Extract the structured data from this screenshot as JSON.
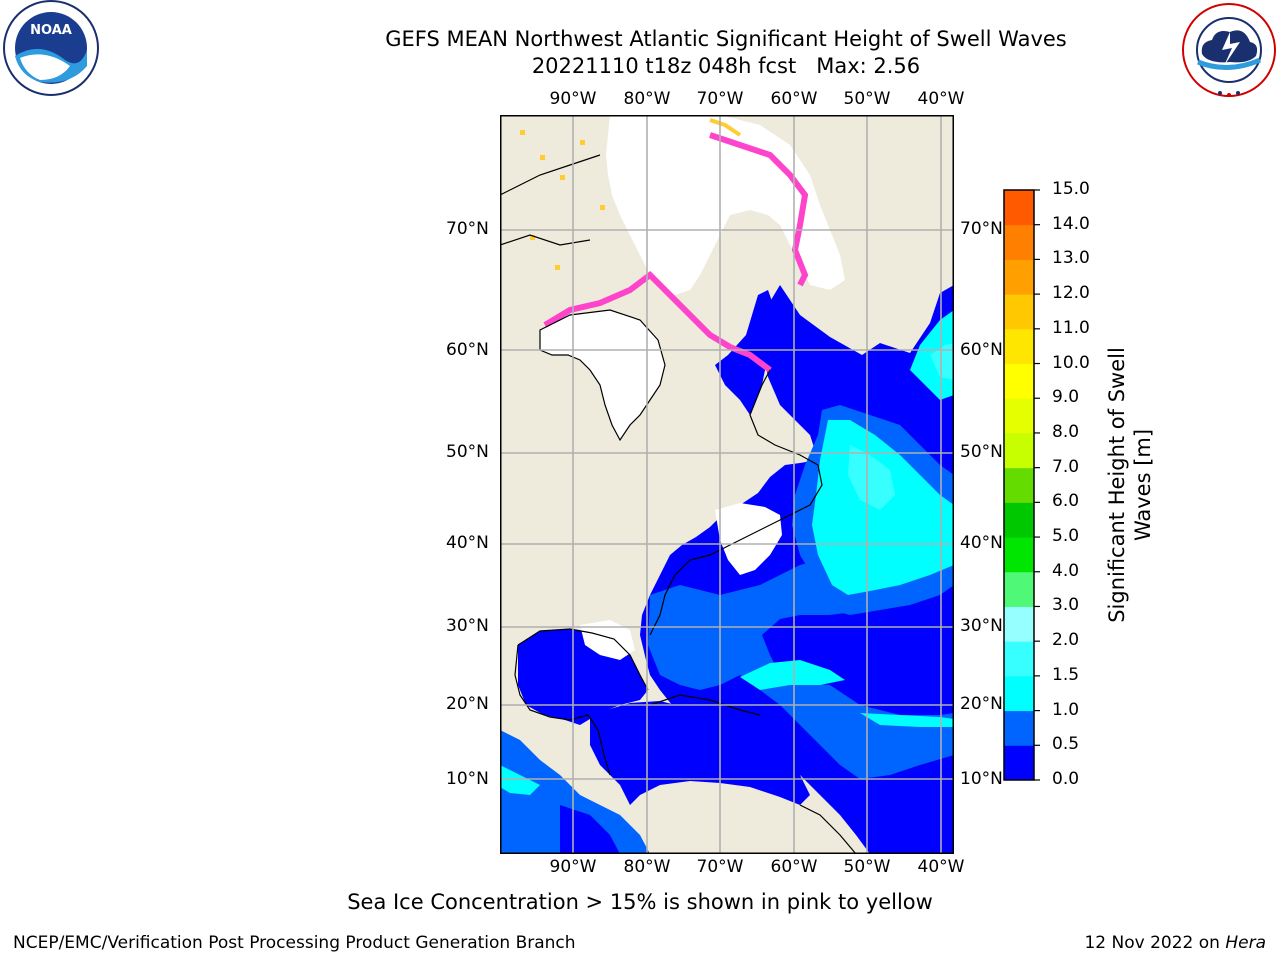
{
  "title_line1": "GEFS MEAN Northwest Atlantic Significant Height of Swell Waves",
  "title_line2": "20221110 t18z 048h fcst   Max: 2.56",
  "lon_labels": [
    "90°W",
    "80°W",
    "70°W",
    "60°W",
    "50°W",
    "40°W"
  ],
  "lat_labels": [
    "70°N",
    "60°N",
    "50°N",
    "40°N",
    "30°N",
    "20°N",
    "10°N"
  ],
  "colorbar": {
    "label_line1": "Significant Height of Swell",
    "label_line2": "Waves [m]",
    "ticks": [
      "15.0",
      "14.0",
      "13.0",
      "12.0",
      "11.0",
      "10.0",
      "9.0",
      "8.0",
      "7.0",
      "6.0",
      "5.0",
      "4.0",
      "3.0",
      "2.0",
      "1.5",
      "1.0",
      "0.5",
      "0.0"
    ],
    "colors_bottom_to_top": [
      "#0000ff",
      "#0064ff",
      "#00ffff",
      "#37ffff",
      "#96ffff",
      "#50f878",
      "#00e600",
      "#00c800",
      "#64dc00",
      "#c8ff00",
      "#e6ff00",
      "#ffff00",
      "#ffe600",
      "#ffc800",
      "#ffa000",
      "#ff8000",
      "#ff5a00",
      "#ff3200",
      "#ff0000"
    ]
  },
  "colors": {
    "land": "#eeebdc",
    "ocean_low": "#0000ff",
    "ocean_mid": "#0064ff",
    "ocean_high": "#00ffff",
    "ocean_higher": "#37ffff",
    "ice_pink": "#ff44cc",
    "ice_yellow": "#ffcc33",
    "grid": "#b0b0b0"
  },
  "footnote": "Sea Ice Concentration > 15% is shown in pink to yellow",
  "credit_left": "NCEP/EMC/Verification Post Processing Product Generation Branch",
  "credit_right_date": "12 Nov 2022 on",
  "credit_right_host": "Hera",
  "logos": {
    "noaa_text": "NOAA",
    "nws_text": "NATIONAL WEATHER SERVICE"
  }
}
